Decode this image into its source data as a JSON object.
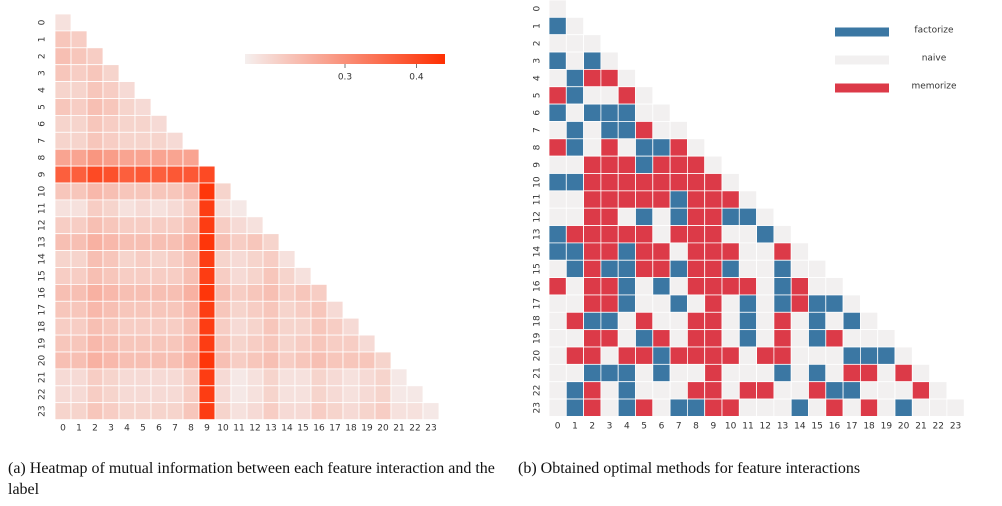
{
  "chart_data": [
    {
      "type": "heatmap",
      "caption": "(a) Heatmap of mutual information between each feature interaction and the label",
      "categories": [
        "0",
        "1",
        "2",
        "3",
        "4",
        "5",
        "6",
        "7",
        "8",
        "9",
        "10",
        "11",
        "12",
        "13",
        "14",
        "15",
        "16",
        "17",
        "18",
        "19",
        "20",
        "21",
        "22",
        "23"
      ],
      "colors": [
        "#f5efee",
        "#fe2f02"
      ],
      "vlim": [
        0.16,
        0.44
      ],
      "colorbar_ticks": [
        0.3,
        0.4
      ],
      "z": [
        [
          0.18
        ],
        [
          0.22,
          0.21
        ],
        [
          0.23,
          0.22,
          0.21
        ],
        [
          0.22,
          0.21,
          0.22,
          0.2
        ],
        [
          0.2,
          0.2,
          0.22,
          0.21,
          0.19
        ],
        [
          0.22,
          0.21,
          0.23,
          0.22,
          0.2,
          0.19
        ],
        [
          0.2,
          0.2,
          0.22,
          0.21,
          0.2,
          0.2,
          0.19
        ],
        [
          0.2,
          0.2,
          0.22,
          0.21,
          0.2,
          0.2,
          0.2,
          0.19
        ],
        [
          0.27,
          0.27,
          0.29,
          0.28,
          0.27,
          0.27,
          0.27,
          0.27,
          0.27
        ],
        [
          0.37,
          0.37,
          0.4,
          0.39,
          0.37,
          0.38,
          0.37,
          0.38,
          0.38,
          0.4
        ],
        [
          0.22,
          0.22,
          0.24,
          0.23,
          0.22,
          0.22,
          0.22,
          0.22,
          0.24,
          0.43,
          0.2
        ],
        [
          0.18,
          0.18,
          0.21,
          0.2,
          0.18,
          0.19,
          0.18,
          0.19,
          0.21,
          0.42,
          0.18,
          0.17
        ],
        [
          0.21,
          0.21,
          0.23,
          0.22,
          0.21,
          0.21,
          0.21,
          0.21,
          0.23,
          0.42,
          0.21,
          0.19,
          0.18
        ],
        [
          0.23,
          0.23,
          0.25,
          0.24,
          0.23,
          0.23,
          0.23,
          0.23,
          0.25,
          0.43,
          0.23,
          0.21,
          0.22,
          0.2
        ],
        [
          0.2,
          0.2,
          0.23,
          0.22,
          0.2,
          0.21,
          0.2,
          0.21,
          0.23,
          0.42,
          0.2,
          0.19,
          0.2,
          0.21,
          0.18
        ],
        [
          0.21,
          0.21,
          0.23,
          0.22,
          0.21,
          0.21,
          0.21,
          0.21,
          0.23,
          0.42,
          0.21,
          0.19,
          0.2,
          0.22,
          0.2,
          0.18
        ],
        [
          0.23,
          0.23,
          0.25,
          0.24,
          0.23,
          0.23,
          0.23,
          0.23,
          0.25,
          0.43,
          0.23,
          0.21,
          0.22,
          0.23,
          0.21,
          0.22,
          0.21
        ],
        [
          0.22,
          0.22,
          0.24,
          0.23,
          0.22,
          0.22,
          0.22,
          0.22,
          0.24,
          0.42,
          0.22,
          0.2,
          0.21,
          0.22,
          0.2,
          0.21,
          0.22,
          0.19
        ],
        [
          0.21,
          0.21,
          0.23,
          0.22,
          0.21,
          0.21,
          0.21,
          0.21,
          0.23,
          0.42,
          0.21,
          0.19,
          0.2,
          0.22,
          0.2,
          0.2,
          0.22,
          0.21,
          0.19
        ],
        [
          0.22,
          0.22,
          0.24,
          0.23,
          0.22,
          0.22,
          0.22,
          0.22,
          0.24,
          0.42,
          0.22,
          0.2,
          0.21,
          0.22,
          0.2,
          0.21,
          0.22,
          0.21,
          0.21,
          0.19
        ],
        [
          0.23,
          0.23,
          0.25,
          0.24,
          0.23,
          0.23,
          0.23,
          0.23,
          0.25,
          0.43,
          0.23,
          0.21,
          0.22,
          0.23,
          0.21,
          0.22,
          0.23,
          0.22,
          0.22,
          0.22,
          0.2
        ],
        [
          0.19,
          0.19,
          0.21,
          0.2,
          0.19,
          0.19,
          0.19,
          0.19,
          0.21,
          0.42,
          0.19,
          0.17,
          0.18,
          0.2,
          0.18,
          0.18,
          0.2,
          0.19,
          0.18,
          0.19,
          0.2,
          0.17
        ],
        [
          0.19,
          0.19,
          0.21,
          0.2,
          0.19,
          0.19,
          0.19,
          0.19,
          0.21,
          0.42,
          0.19,
          0.17,
          0.18,
          0.2,
          0.18,
          0.18,
          0.2,
          0.19,
          0.18,
          0.19,
          0.2,
          0.17,
          0.17
        ],
        [
          0.2,
          0.2,
          0.22,
          0.21,
          0.2,
          0.2,
          0.2,
          0.2,
          0.22,
          0.42,
          0.2,
          0.18,
          0.19,
          0.21,
          0.19,
          0.19,
          0.21,
          0.2,
          0.19,
          0.2,
          0.21,
          0.18,
          0.18,
          0.17
        ]
      ]
    },
    {
      "type": "category_heatmap",
      "caption": "(b) Obtained optimal methods for feature interactions",
      "categories": [
        "0",
        "1",
        "2",
        "3",
        "4",
        "5",
        "6",
        "7",
        "8",
        "9",
        "10",
        "11",
        "12",
        "13",
        "14",
        "15",
        "16",
        "17",
        "18",
        "19",
        "20",
        "21",
        "22",
        "23"
      ],
      "series": [
        {
          "name": "factorize",
          "color": "#3b77a3"
        },
        {
          "name": "naive",
          "color": "#f2f0f0"
        },
        {
          "name": "memorize",
          "color": "#dc3a48"
        }
      ],
      "z": [
        [
          1
        ],
        [
          0,
          1
        ],
        [
          1,
          1,
          1
        ],
        [
          0,
          1,
          0,
          1
        ],
        [
          1,
          0,
          2,
          2,
          1
        ],
        [
          2,
          0,
          1,
          1,
          2,
          1
        ],
        [
          0,
          1,
          0,
          0,
          0,
          1,
          1
        ],
        [
          1,
          0,
          1,
          0,
          0,
          2,
          1,
          1
        ],
        [
          2,
          0,
          1,
          2,
          1,
          0,
          0,
          2,
          1
        ],
        [
          1,
          1,
          2,
          2,
          2,
          0,
          2,
          2,
          2,
          1
        ],
        [
          0,
          0,
          2,
          2,
          2,
          2,
          2,
          2,
          2,
          2,
          1
        ],
        [
          1,
          1,
          2,
          2,
          2,
          2,
          2,
          0,
          2,
          2,
          2,
          1
        ],
        [
          1,
          1,
          2,
          2,
          1,
          0,
          1,
          0,
          2,
          2,
          0,
          0,
          1
        ],
        [
          0,
          2,
          2,
          2,
          2,
          2,
          1,
          2,
          2,
          2,
          1,
          1,
          0,
          1
        ],
        [
          0,
          0,
          2,
          2,
          0,
          2,
          2,
          1,
          2,
          2,
          2,
          1,
          1,
          2,
          1
        ],
        [
          1,
          0,
          2,
          0,
          0,
          2,
          2,
          0,
          2,
          2,
          0,
          1,
          1,
          0,
          1,
          1
        ],
        [
          2,
          1,
          2,
          2,
          0,
          1,
          0,
          1,
          2,
          2,
          2,
          2,
          1,
          0,
          2,
          1,
          1
        ],
        [
          1,
          1,
          2,
          2,
          0,
          1,
          1,
          0,
          1,
          2,
          1,
          0,
          1,
          0,
          2,
          0,
          0,
          1
        ],
        [
          1,
          2,
          0,
          0,
          1,
          2,
          1,
          1,
          2,
          2,
          1,
          0,
          1,
          2,
          1,
          0,
          1,
          0,
          1
        ],
        [
          1,
          1,
          2,
          2,
          1,
          0,
          2,
          1,
          2,
          2,
          1,
          0,
          1,
          2,
          1,
          0,
          2,
          1,
          1,
          1
        ],
        [
          1,
          2,
          2,
          1,
          2,
          2,
          0,
          2,
          2,
          2,
          2,
          1,
          2,
          2,
          1,
          1,
          1,
          0,
          0,
          0,
          1
        ],
        [
          1,
          1,
          0,
          0,
          0,
          1,
          0,
          1,
          1,
          2,
          1,
          1,
          1,
          0,
          1,
          0,
          1,
          2,
          2,
          1,
          2,
          1
        ],
        [
          1,
          0,
          2,
          1,
          0,
          1,
          1,
          1,
          2,
          2,
          1,
          2,
          2,
          1,
          1,
          2,
          0,
          0,
          1,
          1,
          1,
          2,
          1
        ],
        [
          1,
          0,
          2,
          1,
          0,
          2,
          1,
          0,
          0,
          2,
          2,
          1,
          1,
          1,
          0,
          1,
          2,
          1,
          2,
          1,
          0,
          1,
          1,
          1
        ]
      ]
    }
  ]
}
